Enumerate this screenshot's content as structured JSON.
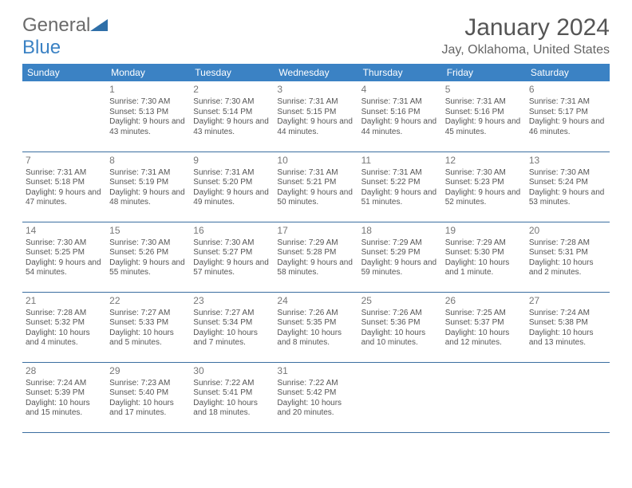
{
  "logo": {
    "text1": "General",
    "text2": "Blue"
  },
  "title": "January 2024",
  "location": "Jay, Oklahoma, United States",
  "header_bg": "#3b82c4",
  "border_color": "#3b6ea0",
  "weekdays": [
    "Sunday",
    "Monday",
    "Tuesday",
    "Wednesday",
    "Thursday",
    "Friday",
    "Saturday"
  ],
  "weeks": [
    [
      null,
      {
        "n": "1",
        "sunrise": "7:30 AM",
        "sunset": "5:13 PM",
        "daylight": "9 hours and 43 minutes."
      },
      {
        "n": "2",
        "sunrise": "7:30 AM",
        "sunset": "5:14 PM",
        "daylight": "9 hours and 43 minutes."
      },
      {
        "n": "3",
        "sunrise": "7:31 AM",
        "sunset": "5:15 PM",
        "daylight": "9 hours and 44 minutes."
      },
      {
        "n": "4",
        "sunrise": "7:31 AM",
        "sunset": "5:16 PM",
        "daylight": "9 hours and 44 minutes."
      },
      {
        "n": "5",
        "sunrise": "7:31 AM",
        "sunset": "5:16 PM",
        "daylight": "9 hours and 45 minutes."
      },
      {
        "n": "6",
        "sunrise": "7:31 AM",
        "sunset": "5:17 PM",
        "daylight": "9 hours and 46 minutes."
      }
    ],
    [
      {
        "n": "7",
        "sunrise": "7:31 AM",
        "sunset": "5:18 PM",
        "daylight": "9 hours and 47 minutes."
      },
      {
        "n": "8",
        "sunrise": "7:31 AM",
        "sunset": "5:19 PM",
        "daylight": "9 hours and 48 minutes."
      },
      {
        "n": "9",
        "sunrise": "7:31 AM",
        "sunset": "5:20 PM",
        "daylight": "9 hours and 49 minutes."
      },
      {
        "n": "10",
        "sunrise": "7:31 AM",
        "sunset": "5:21 PM",
        "daylight": "9 hours and 50 minutes."
      },
      {
        "n": "11",
        "sunrise": "7:31 AM",
        "sunset": "5:22 PM",
        "daylight": "9 hours and 51 minutes."
      },
      {
        "n": "12",
        "sunrise": "7:30 AM",
        "sunset": "5:23 PM",
        "daylight": "9 hours and 52 minutes."
      },
      {
        "n": "13",
        "sunrise": "7:30 AM",
        "sunset": "5:24 PM",
        "daylight": "9 hours and 53 minutes."
      }
    ],
    [
      {
        "n": "14",
        "sunrise": "7:30 AM",
        "sunset": "5:25 PM",
        "daylight": "9 hours and 54 minutes."
      },
      {
        "n": "15",
        "sunrise": "7:30 AM",
        "sunset": "5:26 PM",
        "daylight": "9 hours and 55 minutes."
      },
      {
        "n": "16",
        "sunrise": "7:30 AM",
        "sunset": "5:27 PM",
        "daylight": "9 hours and 57 minutes."
      },
      {
        "n": "17",
        "sunrise": "7:29 AM",
        "sunset": "5:28 PM",
        "daylight": "9 hours and 58 minutes."
      },
      {
        "n": "18",
        "sunrise": "7:29 AM",
        "sunset": "5:29 PM",
        "daylight": "9 hours and 59 minutes."
      },
      {
        "n": "19",
        "sunrise": "7:29 AM",
        "sunset": "5:30 PM",
        "daylight": "10 hours and 1 minute."
      },
      {
        "n": "20",
        "sunrise": "7:28 AM",
        "sunset": "5:31 PM",
        "daylight": "10 hours and 2 minutes."
      }
    ],
    [
      {
        "n": "21",
        "sunrise": "7:28 AM",
        "sunset": "5:32 PM",
        "daylight": "10 hours and 4 minutes."
      },
      {
        "n": "22",
        "sunrise": "7:27 AM",
        "sunset": "5:33 PM",
        "daylight": "10 hours and 5 minutes."
      },
      {
        "n": "23",
        "sunrise": "7:27 AM",
        "sunset": "5:34 PM",
        "daylight": "10 hours and 7 minutes."
      },
      {
        "n": "24",
        "sunrise": "7:26 AM",
        "sunset": "5:35 PM",
        "daylight": "10 hours and 8 minutes."
      },
      {
        "n": "25",
        "sunrise": "7:26 AM",
        "sunset": "5:36 PM",
        "daylight": "10 hours and 10 minutes."
      },
      {
        "n": "26",
        "sunrise": "7:25 AM",
        "sunset": "5:37 PM",
        "daylight": "10 hours and 12 minutes."
      },
      {
        "n": "27",
        "sunrise": "7:24 AM",
        "sunset": "5:38 PM",
        "daylight": "10 hours and 13 minutes."
      }
    ],
    [
      {
        "n": "28",
        "sunrise": "7:24 AM",
        "sunset": "5:39 PM",
        "daylight": "10 hours and 15 minutes."
      },
      {
        "n": "29",
        "sunrise": "7:23 AM",
        "sunset": "5:40 PM",
        "daylight": "10 hours and 17 minutes."
      },
      {
        "n": "30",
        "sunrise": "7:22 AM",
        "sunset": "5:41 PM",
        "daylight": "10 hours and 18 minutes."
      },
      {
        "n": "31",
        "sunrise": "7:22 AM",
        "sunset": "5:42 PM",
        "daylight": "10 hours and 20 minutes."
      },
      null,
      null,
      null
    ]
  ],
  "labels": {
    "sunrise": "Sunrise:",
    "sunset": "Sunset:",
    "daylight": "Daylight:"
  }
}
